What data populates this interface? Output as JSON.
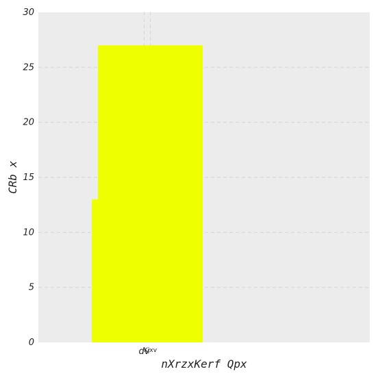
{
  "chart_data": {
    "type": "bar",
    "categories": [
      "dv",
      "Kjxv"
    ],
    "values": [
      13,
      27
    ],
    "xlabel": "nXrzxKerf Qpx",
    "ylabel": "CRb x",
    "ylim": [
      0,
      30
    ],
    "yticks": [
      0,
      5,
      10,
      15,
      20,
      25,
      30
    ],
    "grid": true,
    "colors": {
      "bar": "#eeff00",
      "plot_background": "#ececec",
      "grid": "#d4d4d4",
      "text": "#222222"
    }
  }
}
